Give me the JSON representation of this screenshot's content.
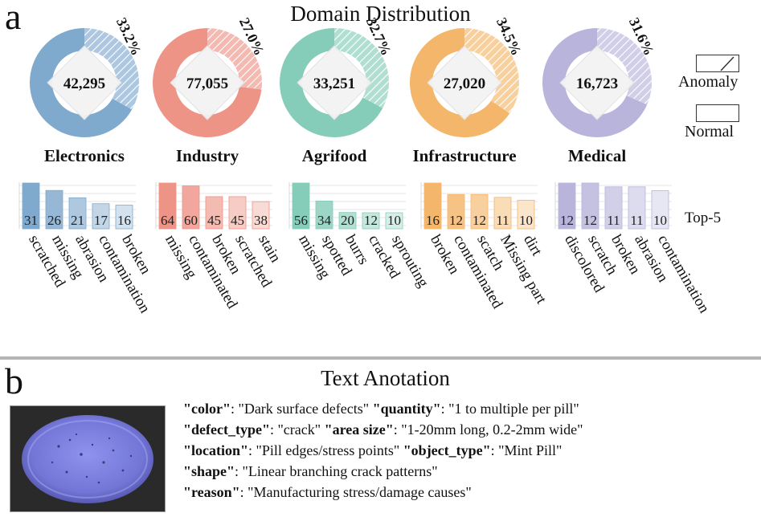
{
  "panel_a_letter": "a",
  "panel_b_letter": "b",
  "chart_data": [
    {
      "type": "pie",
      "title": "Domain Distribution",
      "legend": [
        "Anomaly",
        "Normal"
      ],
      "legend_position": "right",
      "domains": [
        {
          "name": "Electronics",
          "total": "42,295",
          "anomaly_pct": 33.2,
          "anomaly_label": "33.2%",
          "color": "#7FA9CD"
        },
        {
          "name": "Industry",
          "total": "77,055",
          "anomaly_pct": 27.0,
          "anomaly_label": "27.0%",
          "color": "#EE9487"
        },
        {
          "name": "Agrifood",
          "total": "33,251",
          "anomaly_pct": 32.7,
          "anomaly_label": "32.7%",
          "color": "#86CDB9"
        },
        {
          "name": "Infrastructure",
          "total": "27,020",
          "anomaly_pct": 34.5,
          "anomaly_label": "34.5%",
          "color": "#F4B66A"
        },
        {
          "name": "Medical",
          "total": "16,723",
          "anomaly_pct": 31.6,
          "anomaly_label": "31.6%",
          "color": "#B8B4DB"
        }
      ]
    },
    {
      "type": "bar",
      "label": "Top-5",
      "groups": [
        {
          "domain": "Electronics",
          "categories": [
            "scratched",
            "missing",
            "abrasion",
            "contamination",
            "broken"
          ],
          "values": [
            31,
            26,
            21,
            17,
            16
          ]
        },
        {
          "domain": "Industry",
          "categories": [
            "missing",
            "contaminated",
            "broken",
            "scratched",
            "stain"
          ],
          "values": [
            64,
            60,
            45,
            45,
            38
          ]
        },
        {
          "domain": "Agrifood",
          "categories": [
            "missing",
            "spotted",
            "burrs",
            "cracked",
            "sprouting"
          ],
          "values": [
            56,
            34,
            20,
            12,
            10
          ]
        },
        {
          "domain": "Infrastructure",
          "categories": [
            "broken",
            "contaminated",
            "scatch",
            "Missing part",
            "dirt"
          ],
          "values": [
            16,
            12,
            12,
            11,
            10
          ]
        },
        {
          "domain": "Medical",
          "categories": [
            "discolored",
            "scratch",
            "broken",
            "abrasion",
            "contamination"
          ],
          "values": [
            12,
            12,
            11,
            11,
            10
          ]
        }
      ]
    }
  ],
  "text_annotation": {
    "title": "Text Anotation",
    "fields": [
      [
        {
          "key": "\"color\"",
          "value": ": \"Dark surface defects\""
        },
        {
          "key": "\"quantity\"",
          "value": ": \"1 to multiple per pill\""
        }
      ],
      [
        {
          "key": "\"defect_type\"",
          "value": ": \"crack\""
        },
        {
          "key": "\"area size\"",
          "value": ": \"1-20mm long, 0.2-2mm wide\""
        }
      ],
      [
        {
          "key": "\"location\"",
          "value": ": \"Pill edges/stress points\""
        },
        {
          "key": "\"object_type\"",
          "value": ": \"Mint Pill\""
        }
      ],
      [
        {
          "key": "\"shape\"",
          "value": ": \"Linear branching crack patterns\""
        }
      ],
      [
        {
          "key": "\"reason\"",
          "value": ": \"Manufacturing stress/damage causes\""
        }
      ]
    ]
  }
}
